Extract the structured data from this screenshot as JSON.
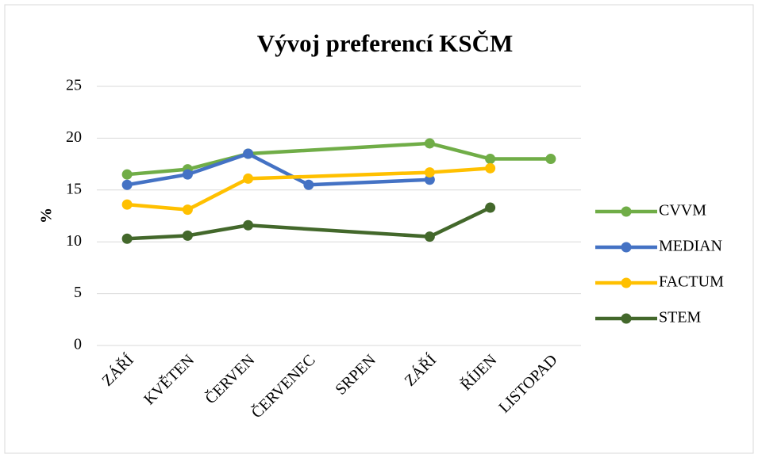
{
  "chart_data": {
    "type": "line",
    "title": "Vývoj preferencí KSČM",
    "y_label": "%",
    "categories": [
      "ZÁŘÍ",
      "KVĚTEN",
      "ČERVEN",
      "ČERVENEC",
      "SRPEN",
      "ZÁŘÍ",
      "ŘÍJEN",
      "LISTOPAD"
    ],
    "series": [
      {
        "name": "CVVM",
        "color": "#70ad47",
        "values": [
          16.5,
          17,
          18.5,
          null,
          null,
          19.5,
          18,
          18
        ]
      },
      {
        "name": "MEDIAN",
        "color": "#4472c4",
        "values": [
          15.5,
          16.5,
          18.5,
          15.5,
          null,
          16,
          null,
          null
        ]
      },
      {
        "name": "FACTUM",
        "color": "#ffc000",
        "values": [
          13.6,
          13.1,
          16.1,
          null,
          null,
          16.7,
          17.1,
          null
        ]
      },
      {
        "name": "STEM",
        "color": "#43682b",
        "values": [
          10.3,
          10.6,
          11.6,
          null,
          null,
          10.5,
          13.3,
          null
        ]
      }
    ],
    "ylim": [
      0,
      25
    ],
    "yticks": [
      0,
      5,
      10,
      15,
      20,
      25
    ],
    "grid": true,
    "legend": "right",
    "span_gaps": true
  }
}
